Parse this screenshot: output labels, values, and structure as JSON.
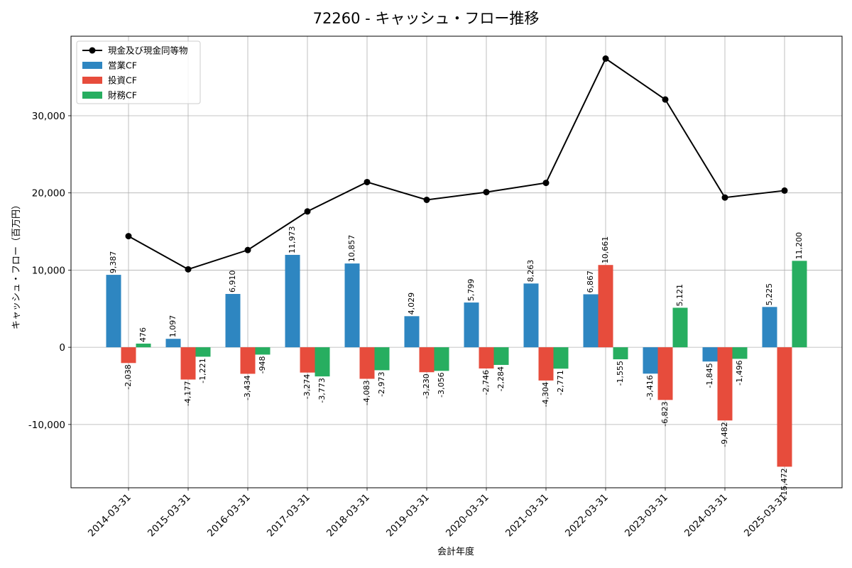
{
  "chart_data": {
    "type": "bar",
    "title": "72260 - キャッシュ・フロー推移",
    "xlabel": "会計年度",
    "ylabel": "キャッシュ・フロー（百万円）",
    "ylim": [
      -18200,
      40300
    ],
    "yticks": [
      -10000,
      0,
      10000,
      20000,
      30000
    ],
    "ytick_labels": [
      "-10,000",
      "0",
      "10,000",
      "20,000",
      "30,000"
    ],
    "grid": true,
    "legend_position": "top-left",
    "categories": [
      "2014-03-31",
      "2015-03-31",
      "2016-03-31",
      "2017-03-31",
      "2018-03-31",
      "2019-03-31",
      "2020-03-31",
      "2021-03-31",
      "2022-03-31",
      "2023-03-31",
      "2024-03-31",
      "2025-03-31"
    ],
    "line_series": {
      "name": "現金及び現金同等物",
      "color": "#000000",
      "values": [
        14400,
        10100,
        12600,
        17600,
        21400,
        19100,
        20100,
        21300,
        37400,
        32100,
        19400,
        20300
      ]
    },
    "series": [
      {
        "name": "営業CF",
        "color": "#2e86c1",
        "values": [
          9387,
          1097,
          6910,
          11973,
          10857,
          4029,
          5799,
          8263,
          6867,
          -3416,
          -1845,
          5225
        ],
        "labels": [
          "9,387",
          "1,097",
          "6,910",
          "11,973",
          "10,857",
          "4,029",
          "5,799",
          "8,263",
          "6,867",
          "-3,416",
          "-1,845",
          "5,225"
        ]
      },
      {
        "name": "投資CF",
        "color": "#e74c3c",
        "values": [
          -2038,
          -4177,
          -3434,
          -3274,
          -4083,
          -3230,
          -2746,
          -4304,
          10661,
          -6823,
          -9482,
          -15472
        ],
        "labels": [
          "-2,038",
          "-4,177",
          "-3,434",
          "-3,274",
          "-4,083",
          "-3,230",
          "-2,746",
          "-4,304",
          "10,661",
          "-6,823",
          "-9,482",
          "-15,472"
        ]
      },
      {
        "name": "財務CF",
        "color": "#27ae60",
        "values": [
          476,
          -1221,
          -948,
          -3773,
          -2973,
          -3056,
          -2284,
          -2771,
          -1555,
          5121,
          -1496,
          11200
        ],
        "labels": [
          "476",
          "-1,221",
          "-948",
          "-3,773",
          "-2,973",
          "-3,056",
          "-2,284",
          "-2,771",
          "-1,555",
          "5,121",
          "-1,496",
          "11,200"
        ]
      }
    ]
  }
}
